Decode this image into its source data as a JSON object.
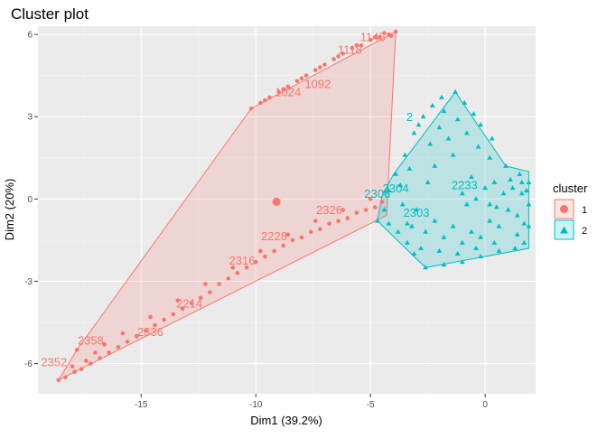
{
  "chart_data": {
    "type": "scatter",
    "title": "Cluster plot",
    "xlabel": "Dim1 (39.2%)",
    "ylabel": "Dim2 (20%)",
    "xlim": [
      -19.5,
      2.2
    ],
    "ylim": [
      -7.1,
      6.3
    ],
    "x_ticks": [
      -15,
      -10,
      -5,
      0
    ],
    "y_ticks": [
      -6,
      -3,
      0,
      3,
      6
    ],
    "x_tick_labels": [
      "-15",
      "-10",
      "-5",
      "0"
    ],
    "y_tick_labels": [
      "-6",
      "-3",
      "0",
      "3",
      "6"
    ],
    "grid": true,
    "legend_placement": "right",
    "legend_title": "cluster",
    "series": [
      {
        "name": "1",
        "color": "#F8766D",
        "marker": "circle",
        "centroid": [
          -9.1,
          -0.1
        ],
        "hull": [
          [
            -18.6,
            -6.6
          ],
          [
            -4.3,
            -0.6
          ],
          [
            -3.9,
            6.1
          ],
          [
            -10.2,
            3.3
          ],
          [
            -17.8,
            -5.5
          ]
        ],
        "points": [
          [
            -18.6,
            -6.6
          ],
          [
            -18.3,
            -6.5
          ],
          [
            -17.9,
            -6.3
          ],
          [
            -17.6,
            -6.2
          ],
          [
            -17.2,
            -6.0
          ],
          [
            -16.8,
            -5.8
          ],
          [
            -16.4,
            -5.6
          ],
          [
            -16.0,
            -5.4
          ],
          [
            -15.6,
            -5.2
          ],
          [
            -15.2,
            -5.0
          ],
          [
            -14.8,
            -4.8
          ],
          [
            -14.4,
            -4.6
          ],
          [
            -14.0,
            -4.4
          ],
          [
            -13.6,
            -4.2
          ],
          [
            -13.2,
            -4.0
          ],
          [
            -12.8,
            -3.8
          ],
          [
            -12.4,
            -3.6
          ],
          [
            -12.0,
            -3.4
          ],
          [
            -11.6,
            -3.1
          ],
          [
            -11.2,
            -2.9
          ],
          [
            -10.8,
            -2.7
          ],
          [
            -10.4,
            -2.5
          ],
          [
            -10.0,
            -2.3
          ],
          [
            -9.6,
            -2.1
          ],
          [
            -9.2,
            -1.9
          ],
          [
            -8.8,
            -1.7
          ],
          [
            -8.4,
            -1.5
          ],
          [
            -8.0,
            -1.4
          ],
          [
            -7.6,
            -1.2
          ],
          [
            -7.2,
            -1.1
          ],
          [
            -6.8,
            -0.9
          ],
          [
            -6.4,
            -0.8
          ],
          [
            -6.0,
            -0.7
          ],
          [
            -5.6,
            -0.5
          ],
          [
            -5.2,
            -0.4
          ],
          [
            -4.8,
            -0.3
          ],
          [
            -4.5,
            -0.1
          ],
          [
            -17.8,
            -5.5
          ],
          [
            -17.4,
            -5.9
          ],
          [
            -16.6,
            -5.3
          ],
          [
            -15.8,
            -4.9
          ],
          [
            -14.6,
            -4.3
          ],
          [
            -13.4,
            -3.7
          ],
          [
            -12.2,
            -3.1
          ],
          [
            -11.0,
            -2.5
          ],
          [
            -9.8,
            -1.9
          ],
          [
            -8.6,
            -1.3
          ],
          [
            -7.4,
            -0.8
          ],
          [
            -6.2,
            -0.4
          ],
          [
            -5.0,
            0.0
          ],
          [
            -18.0,
            -6.1
          ],
          [
            -17.0,
            -5.6
          ],
          [
            -10.2,
            3.3
          ],
          [
            -9.8,
            3.5
          ],
          [
            -9.4,
            3.7
          ],
          [
            -9.0,
            3.9
          ],
          [
            -8.6,
            4.1
          ],
          [
            -8.2,
            4.3
          ],
          [
            -7.8,
            4.5
          ],
          [
            -7.4,
            4.7
          ],
          [
            -7.0,
            4.9
          ],
          [
            -6.6,
            5.1
          ],
          [
            -6.2,
            5.3
          ],
          [
            -5.8,
            5.5
          ],
          [
            -5.4,
            5.6
          ],
          [
            -5.0,
            5.8
          ],
          [
            -4.6,
            5.9
          ],
          [
            -4.2,
            6.0
          ],
          [
            -3.9,
            6.1
          ],
          [
            -9.6,
            3.6
          ],
          [
            -8.8,
            4.0
          ],
          [
            -8.0,
            4.4
          ],
          [
            -7.2,
            4.8
          ],
          [
            -6.4,
            5.2
          ],
          [
            -5.6,
            5.6
          ],
          [
            -4.8,
            5.9
          ],
          [
            -4.4,
            6.05
          ],
          [
            -4.1,
            5.95
          ],
          [
            -9.1,
            -0.1
          ]
        ],
        "labels": [
          {
            "x": -8.6,
            "y": 3.75,
            "text": "1024"
          },
          {
            "x": -7.3,
            "y": 4.05,
            "text": "1092"
          },
          {
            "x": -18.8,
            "y": -6.1,
            "text": "2352"
          },
          {
            "x": -17.2,
            "y": -5.3,
            "text": "2358"
          },
          {
            "x": -14.6,
            "y": -5.0,
            "text": "2336"
          },
          {
            "x": -12.9,
            "y": -3.95,
            "text": "2214"
          },
          {
            "x": -10.6,
            "y": -2.4,
            "text": "2316"
          },
          {
            "x": -9.2,
            "y": -1.5,
            "text": "2228"
          },
          {
            "x": -6.8,
            "y": -0.55,
            "text": "2326"
          },
          {
            "x": -5.9,
            "y": 5.3,
            "text": "1118"
          },
          {
            "x": -4.9,
            "y": 5.75,
            "text": "1145"
          }
        ]
      },
      {
        "name": "2",
        "color": "#00BFC4",
        "marker": "triangle",
        "hull": [
          [
            -4.7,
            -0.8
          ],
          [
            -2.6,
            -2.5
          ],
          [
            1.9,
            -1.8
          ],
          [
            1.9,
            1.0
          ],
          [
            0.9,
            1.2
          ],
          [
            -1.3,
            3.9
          ],
          [
            -4.0,
            0.9
          ],
          [
            -4.5,
            0.1
          ]
        ],
        "points": [
          [
            -4.7,
            -0.8
          ],
          [
            -4.4,
            -0.4
          ],
          [
            -4.2,
            0.3
          ],
          [
            -3.9,
            0.9
          ],
          [
            -3.5,
            1.6
          ],
          [
            -3.1,
            2.4
          ],
          [
            -2.7,
            3.0
          ],
          [
            -2.3,
            3.4
          ],
          [
            -1.9,
            3.7
          ],
          [
            -1.3,
            3.9
          ],
          [
            -0.9,
            3.5
          ],
          [
            -0.5,
            3.1
          ],
          [
            -0.2,
            2.7
          ],
          [
            0.3,
            2.2
          ],
          [
            0.9,
            1.2
          ],
          [
            1.5,
            0.9
          ],
          [
            1.9,
            0.6
          ],
          [
            1.9,
            -0.2
          ],
          [
            1.9,
            -1.0
          ],
          [
            1.7,
            -1.6
          ],
          [
            1.3,
            -1.8
          ],
          [
            0.6,
            -1.9
          ],
          [
            -0.2,
            -2.1
          ],
          [
            -1.0,
            -2.3
          ],
          [
            -1.8,
            -2.4
          ],
          [
            -2.6,
            -2.5
          ],
          [
            -3.1,
            -2.0
          ],
          [
            -3.4,
            -1.6
          ],
          [
            -3.8,
            -1.2
          ],
          [
            -4.2,
            -0.9
          ],
          [
            -3.4,
            -0.9
          ],
          [
            -3.0,
            -0.4
          ],
          [
            -2.6,
            -1.2
          ],
          [
            -2.2,
            -0.8
          ],
          [
            -1.8,
            -1.4
          ],
          [
            -1.4,
            -1.0
          ],
          [
            -1.0,
            -1.6
          ],
          [
            -0.6,
            -1.2
          ],
          [
            -0.2,
            -1.4
          ],
          [
            0.2,
            -0.8
          ],
          [
            0.6,
            -1.0
          ],
          [
            1.0,
            -0.4
          ],
          [
            1.4,
            -0.6
          ],
          [
            1.6,
            0.2
          ],
          [
            1.2,
            0.4
          ],
          [
            0.8,
            0.2
          ],
          [
            0.4,
            0.6
          ],
          [
            0.0,
            0.4
          ],
          [
            -0.4,
            0.0
          ],
          [
            -0.8,
            -0.2
          ],
          [
            0.5,
            -0.3
          ],
          [
            1.1,
            0.7
          ],
          [
            -0.6,
            0.8
          ],
          [
            -1.6,
            2.2
          ],
          [
            -2.0,
            2.6
          ],
          [
            -1.2,
            2.9
          ],
          [
            -0.8,
            2.4
          ],
          [
            -2.4,
            2.0
          ],
          [
            -1.4,
            1.6
          ],
          [
            -0.3,
            1.9
          ],
          [
            0.2,
            1.5
          ],
          [
            -1.8,
            3.2
          ],
          [
            -2.9,
            2.7
          ],
          [
            -3.3,
            1.1
          ],
          [
            -3.7,
            0.5
          ],
          [
            -3.6,
            -0.2
          ],
          [
            -3.2,
            -1.0
          ],
          [
            -2.8,
            -1.8
          ],
          [
            -2.0,
            -1.9
          ],
          [
            -1.2,
            -2.0
          ],
          [
            -0.4,
            -1.8
          ],
          [
            0.4,
            -1.6
          ],
          [
            1.4,
            -1.3
          ],
          [
            1.7,
            -0.9
          ],
          [
            1.8,
            0.3
          ],
          [
            1.6,
            0.6
          ],
          [
            -2.5,
            0.6
          ],
          [
            -2.2,
            1.2
          ],
          [
            -1.0,
            0.2
          ],
          [
            0.2,
            -0.2
          ]
        ],
        "labels": [
          {
            "x": -3.9,
            "y": 0.25,
            "text": "2304"
          },
          {
            "x": -0.9,
            "y": 0.35,
            "text": "2233"
          },
          {
            "x": -3.0,
            "y": -0.65,
            "text": "2303"
          },
          {
            "x": -4.7,
            "y": 0.05,
            "text": "2306"
          },
          {
            "x": -3.3,
            "y": 2.85,
            "text": "2"
          }
        ]
      }
    ]
  }
}
